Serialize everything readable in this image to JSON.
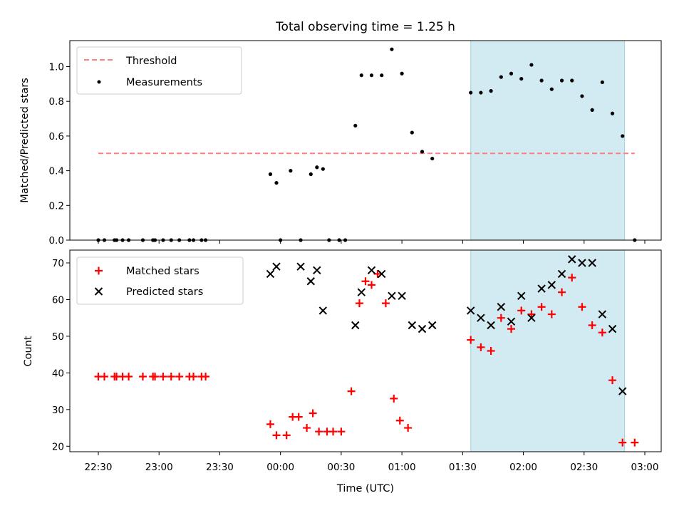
{
  "chart_data": {
    "title": "Total observing time = 1.25 h",
    "xlabel": "Time (UTC)",
    "x_ticks": [
      "22:30",
      "23:00",
      "23:30",
      "00:00",
      "00:30",
      "01:00",
      "01:30",
      "02:00",
      "02:30",
      "03:00"
    ],
    "highlight_span": {
      "start": "01:34",
      "end": "02:50",
      "color": "#add8e6"
    },
    "panels": [
      {
        "type": "scatter",
        "ylabel": "Matched/Predicted stars",
        "ylim": [
          0,
          1.15
        ],
        "y_ticks": [
          "0.0",
          "0.2",
          "0.4",
          "0.6",
          "0.8",
          "1.0"
        ],
        "legend": {
          "position": "upper-left",
          "entries": [
            "Threshold",
            "Measurements"
          ]
        },
        "series": [
          {
            "name": "Threshold",
            "kind": "dashed-line",
            "color": "#ff7f7f",
            "points": [
              [
                "22:30",
                0.5
              ],
              [
                "02:55",
                0.5
              ]
            ]
          },
          {
            "name": "Measurements",
            "kind": "dot",
            "color": "#000000",
            "points": [
              [
                "22:30",
                0.0
              ],
              [
                "22:33",
                0.0
              ],
              [
                "22:38",
                0.0
              ],
              [
                "22:39",
                0.0
              ],
              [
                "22:42",
                0.0
              ],
              [
                "22:45",
                0.0
              ],
              [
                "22:52",
                0.0
              ],
              [
                "22:57",
                0.0
              ],
              [
                "22:58",
                0.0
              ],
              [
                "23:02",
                0.0
              ],
              [
                "23:06",
                0.0
              ],
              [
                "23:10",
                0.0
              ],
              [
                "23:15",
                0.0
              ],
              [
                "23:17",
                0.0
              ],
              [
                "23:21",
                0.0
              ],
              [
                "23:23",
                0.0
              ],
              [
                "23:55",
                0.38
              ],
              [
                "23:58",
                0.33
              ],
              [
                "00:00",
                0.0
              ],
              [
                "00:05",
                0.4
              ],
              [
                "00:10",
                0.0
              ],
              [
                "00:15",
                0.38
              ],
              [
                "00:18",
                0.42
              ],
              [
                "00:21",
                0.41
              ],
              [
                "00:24",
                0.0
              ],
              [
                "00:29",
                0.0
              ],
              [
                "00:32",
                0.0
              ],
              [
                "00:37",
                0.66
              ],
              [
                "00:40",
                0.95
              ],
              [
                "00:45",
                0.95
              ],
              [
                "00:50",
                0.95
              ],
              [
                "00:55",
                1.1
              ],
              [
                "01:00",
                0.96
              ],
              [
                "01:05",
                0.62
              ],
              [
                "01:10",
                0.51
              ],
              [
                "01:15",
                0.47
              ],
              [
                "01:34",
                0.85
              ],
              [
                "01:39",
                0.85
              ],
              [
                "01:44",
                0.86
              ],
              [
                "01:49",
                0.94
              ],
              [
                "01:54",
                0.96
              ],
              [
                "01:59",
                0.93
              ],
              [
                "02:04",
                1.01
              ],
              [
                "02:09",
                0.92
              ],
              [
                "02:14",
                0.87
              ],
              [
                "02:19",
                0.92
              ],
              [
                "02:24",
                0.92
              ],
              [
                "02:29",
                0.83
              ],
              [
                "02:34",
                0.75
              ],
              [
                "02:39",
                0.91
              ],
              [
                "02:44",
                0.73
              ],
              [
                "02:49",
                0.6
              ],
              [
                "02:55",
                0.0
              ]
            ]
          }
        ]
      },
      {
        "type": "scatter",
        "ylabel": "Count",
        "ylim": [
          18.5,
          73.5
        ],
        "y_ticks": [
          "20",
          "30",
          "40",
          "50",
          "60",
          "70"
        ],
        "legend": {
          "position": "upper-left",
          "entries": [
            "Matched stars",
            "Predicted stars"
          ]
        },
        "series": [
          {
            "name": "Matched stars",
            "kind": "plus",
            "color": "#ff0000",
            "points": [
              [
                "22:30",
                39
              ],
              [
                "22:33",
                39
              ],
              [
                "22:38",
                39
              ],
              [
                "22:39",
                39
              ],
              [
                "22:42",
                39
              ],
              [
                "22:45",
                39
              ],
              [
                "22:52",
                39
              ],
              [
                "22:57",
                39
              ],
              [
                "22:58",
                39
              ],
              [
                "23:02",
                39
              ],
              [
                "23:06",
                39
              ],
              [
                "23:10",
                39
              ],
              [
                "23:15",
                39
              ],
              [
                "23:17",
                39
              ],
              [
                "23:21",
                39
              ],
              [
                "23:23",
                39
              ],
              [
                "23:55",
                26
              ],
              [
                "23:58",
                23
              ],
              [
                "00:03",
                23
              ],
              [
                "00:06",
                28
              ],
              [
                "00:09",
                28
              ],
              [
                "00:13",
                25
              ],
              [
                "00:16",
                29
              ],
              [
                "00:19",
                24
              ],
              [
                "00:23",
                24
              ],
              [
                "00:26",
                24
              ],
              [
                "00:30",
                24
              ],
              [
                "00:35",
                35
              ],
              [
                "00:39",
                59
              ],
              [
                "00:42",
                65
              ],
              [
                "00:45",
                64
              ],
              [
                "00:48",
                67
              ],
              [
                "00:52",
                59
              ],
              [
                "00:56",
                33
              ],
              [
                "00:59",
                27
              ],
              [
                "01:03",
                25
              ],
              [
                "01:34",
                49
              ],
              [
                "01:39",
                47
              ],
              [
                "01:44",
                46
              ],
              [
                "01:49",
                55
              ],
              [
                "01:54",
                52
              ],
              [
                "01:59",
                57
              ],
              [
                "02:04",
                56
              ],
              [
                "02:09",
                58
              ],
              [
                "02:14",
                56
              ],
              [
                "02:19",
                62
              ],
              [
                "02:24",
                66
              ],
              [
                "02:29",
                58
              ],
              [
                "02:34",
                53
              ],
              [
                "02:39",
                51
              ],
              [
                "02:44",
                38
              ],
              [
                "02:49",
                21
              ],
              [
                "02:55",
                21
              ]
            ]
          },
          {
            "name": "Predicted stars",
            "kind": "x",
            "color": "#000000",
            "points": [
              [
                "23:55",
                67
              ],
              [
                "23:58",
                69
              ],
              [
                "00:10",
                69
              ],
              [
                "00:15",
                65
              ],
              [
                "00:18",
                68
              ],
              [
                "00:21",
                57
              ],
              [
                "00:37",
                53
              ],
              [
                "00:40",
                62
              ],
              [
                "00:45",
                68
              ],
              [
                "00:50",
                67
              ],
              [
                "00:55",
                61
              ],
              [
                "01:00",
                61
              ],
              [
                "01:05",
                53
              ],
              [
                "01:10",
                52
              ],
              [
                "01:15",
                53
              ],
              [
                "01:34",
                57
              ],
              [
                "01:39",
                55
              ],
              [
                "01:44",
                53
              ],
              [
                "01:49",
                58
              ],
              [
                "01:54",
                54
              ],
              [
                "01:59",
                61
              ],
              [
                "02:04",
                55
              ],
              [
                "02:09",
                63
              ],
              [
                "02:14",
                64
              ],
              [
                "02:19",
                67
              ],
              [
                "02:24",
                71
              ],
              [
                "02:29",
                70
              ],
              [
                "02:34",
                70
              ],
              [
                "02:39",
                56
              ],
              [
                "02:44",
                52
              ],
              [
                "02:49",
                35
              ]
            ]
          }
        ]
      }
    ]
  }
}
